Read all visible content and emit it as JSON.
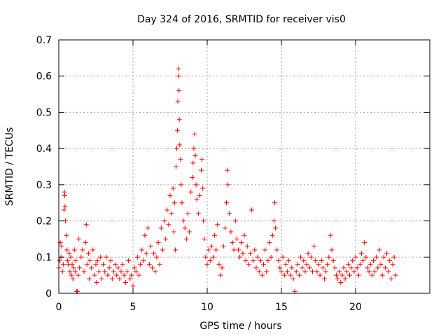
{
  "chart_data": {
    "type": "scatter",
    "title": "Day 324 of 2016, SRMTID for receiver vis0",
    "xlabel": "GPS time / hours",
    "ylabel": "SRMTID / TECUs",
    "xlim": [
      0,
      25
    ],
    "ylim": [
      0,
      0.7
    ],
    "xticks": [
      0,
      5,
      10,
      15,
      20
    ],
    "xtick_labels": [
      "0",
      "5",
      "10",
      "15",
      "20"
    ],
    "yticks": [
      0,
      0.1,
      0.2,
      0.3,
      0.4,
      0.5,
      0.6,
      0.7
    ],
    "ytick_labels": [
      "0",
      "0.1",
      "0.2",
      "0.3",
      "0.4",
      "0.5",
      "0.6",
      "0.7"
    ],
    "grid": true,
    "marker": "+",
    "color": "#ff0000",
    "series": [
      {
        "name": "SRMTID",
        "points": [
          [
            0.0,
            0.07
          ],
          [
            0.05,
            0.09
          ],
          [
            0.1,
            0.14
          ],
          [
            0.15,
            0.1
          ],
          [
            0.2,
            0.13
          ],
          [
            0.25,
            0.06
          ],
          [
            0.3,
            0.08
          ],
          [
            0.35,
            0.23
          ],
          [
            0.38,
            0.28
          ],
          [
            0.4,
            0.27
          ],
          [
            0.42,
            0.24
          ],
          [
            0.45,
            0.2
          ],
          [
            0.5,
            0.16
          ],
          [
            0.55,
            0.12
          ],
          [
            0.6,
            0.09
          ],
          [
            0.65,
            0.08
          ],
          [
            0.7,
            0.11
          ],
          [
            0.75,
            0.06
          ],
          [
            0.8,
            0.1
          ],
          [
            0.85,
            0.05
          ],
          [
            0.9,
            0.08
          ],
          [
            0.95,
            0.04
          ],
          [
            1.0,
            0.07
          ],
          [
            1.05,
            0.12
          ],
          [
            1.1,
            0.06
          ],
          [
            1.15,
            0.09
          ],
          [
            1.2,
            0.005
          ],
          [
            1.25,
            0.005
          ],
          [
            1.3,
            0.05
          ],
          [
            1.35,
            0.15
          ],
          [
            1.4,
            0.07
          ],
          [
            1.5,
            0.1
          ],
          [
            1.6,
            0.12
          ],
          [
            1.7,
            0.06
          ],
          [
            1.8,
            0.14
          ],
          [
            1.85,
            0.19
          ],
          [
            1.9,
            0.08
          ],
          [
            2.0,
            0.11
          ],
          [
            2.05,
            0.04
          ],
          [
            2.1,
            0.09
          ],
          [
            2.2,
            0.07
          ],
          [
            2.3,
            0.12
          ],
          [
            2.4,
            0.05
          ],
          [
            2.5,
            0.08
          ],
          [
            2.55,
            0.03
          ],
          [
            2.6,
            0.09
          ],
          [
            2.7,
            0.06
          ],
          [
            2.8,
            0.1
          ],
          [
            2.9,
            0.04
          ],
          [
            3.0,
            0.08
          ],
          [
            3.1,
            0.06
          ],
          [
            3.2,
            0.1
          ],
          [
            3.3,
            0.05
          ],
          [
            3.4,
            0.07
          ],
          [
            3.5,
            0.09
          ],
          [
            3.6,
            0.04
          ],
          [
            3.7,
            0.06
          ],
          [
            3.8,
            0.08
          ],
          [
            3.9,
            0.05
          ],
          [
            4.0,
            0.07
          ],
          [
            4.1,
            0.04
          ],
          [
            4.2,
            0.06
          ],
          [
            4.3,
            0.08
          ],
          [
            4.4,
            0.05
          ],
          [
            4.5,
            0.03
          ],
          [
            4.6,
            0.06
          ],
          [
            4.7,
            0.09
          ],
          [
            4.8,
            0.04
          ],
          [
            4.9,
            0.05
          ],
          [
            5.0,
            0.02
          ],
          [
            5.1,
            0.07
          ],
          [
            5.2,
            0.06
          ],
          [
            5.3,
            0.1
          ],
          [
            5.4,
            0.05
          ],
          [
            5.5,
            0.08
          ],
          [
            5.6,
            0.12
          ],
          [
            5.7,
            0.09
          ],
          [
            5.8,
            0.16
          ],
          [
            5.9,
            0.11
          ],
          [
            6.0,
            0.18
          ],
          [
            6.1,
            0.08
          ],
          [
            6.2,
            0.13
          ],
          [
            6.3,
            0.07
          ],
          [
            6.4,
            0.11
          ],
          [
            6.5,
            0.06
          ],
          [
            6.6,
            0.1
          ],
          [
            6.7,
            0.14
          ],
          [
            6.8,
            0.08
          ],
          [
            6.9,
            0.18
          ],
          [
            7.0,
            0.12
          ],
          [
            7.1,
            0.2
          ],
          [
            7.2,
            0.15
          ],
          [
            7.3,
            0.23
          ],
          [
            7.4,
            0.19
          ],
          [
            7.5,
            0.27
          ],
          [
            7.6,
            0.22
          ],
          [
            7.7,
            0.29
          ],
          [
            7.75,
            0.17
          ],
          [
            7.8,
            0.25
          ],
          [
            7.85,
            0.12
          ],
          [
            7.9,
            0.35
          ],
          [
            7.95,
            0.4
          ],
          [
            8.0,
            0.45
          ],
          [
            8.02,
            0.53
          ],
          [
            8.05,
            0.62
          ],
          [
            8.08,
            0.6
          ],
          [
            8.1,
            0.56
          ],
          [
            8.12,
            0.48
          ],
          [
            8.15,
            0.41
          ],
          [
            8.2,
            0.37
          ],
          [
            8.25,
            0.3
          ],
          [
            8.3,
            0.25
          ],
          [
            8.4,
            0.2
          ],
          [
            8.5,
            0.18
          ],
          [
            8.6,
            0.15
          ],
          [
            8.7,
            0.22
          ],
          [
            8.8,
            0.17
          ],
          [
            8.9,
            0.28
          ],
          [
            9.0,
            0.32
          ],
          [
            9.05,
            0.36
          ],
          [
            9.1,
            0.4
          ],
          [
            9.15,
            0.44
          ],
          [
            9.2,
            0.38
          ],
          [
            9.25,
            0.3
          ],
          [
            9.3,
            0.26
          ],
          [
            9.4,
            0.22
          ],
          [
            9.5,
            0.27
          ],
          [
            9.6,
            0.34
          ],
          [
            9.65,
            0.37
          ],
          [
            9.7,
            0.29
          ],
          [
            9.75,
            0.2
          ],
          [
            9.8,
            0.15
          ],
          [
            9.9,
            0.1
          ],
          [
            10.0,
            0.08
          ],
          [
            10.1,
            0.12
          ],
          [
            10.2,
            0.09
          ],
          [
            10.3,
            0.13
          ],
          [
            10.4,
            0.1
          ],
          [
            10.5,
            0.16
          ],
          [
            10.6,
            0.12
          ],
          [
            10.7,
            0.19
          ],
          [
            10.8,
            0.08
          ],
          [
            10.9,
            0.05
          ],
          [
            11.0,
            0.07
          ],
          [
            11.1,
            0.13
          ],
          [
            11.2,
            0.18
          ],
          [
            11.3,
            0.25
          ],
          [
            11.35,
            0.34
          ],
          [
            11.4,
            0.3
          ],
          [
            11.5,
            0.22
          ],
          [
            11.6,
            0.17
          ],
          [
            11.7,
            0.14
          ],
          [
            11.8,
            0.12
          ],
          [
            11.9,
            0.2
          ],
          [
            12.0,
            0.15
          ],
          [
            12.1,
            0.12
          ],
          [
            12.2,
            0.1
          ],
          [
            12.3,
            0.14
          ],
          [
            12.4,
            0.11
          ],
          [
            12.5,
            0.16
          ],
          [
            12.6,
            0.09
          ],
          [
            12.7,
            0.13
          ],
          [
            12.8,
            0.08
          ],
          [
            12.9,
            0.11
          ],
          [
            13.0,
            0.23
          ],
          [
            13.1,
            0.09
          ],
          [
            13.2,
            0.12
          ],
          [
            13.3,
            0.07
          ],
          [
            13.4,
            0.1
          ],
          [
            13.5,
            0.06
          ],
          [
            13.6,
            0.09
          ],
          [
            13.7,
            0.05
          ],
          [
            13.8,
            0.08
          ],
          [
            13.9,
            0.12
          ],
          [
            14.0,
            0.06
          ],
          [
            14.1,
            0.09
          ],
          [
            14.2,
            0.14
          ],
          [
            14.3,
            0.1
          ],
          [
            14.4,
            0.16
          ],
          [
            14.5,
            0.2
          ],
          [
            14.55,
            0.25
          ],
          [
            14.6,
            0.18
          ],
          [
            14.7,
            0.12
          ],
          [
            14.8,
            0.09
          ],
          [
            14.9,
            0.07
          ],
          [
            15.0,
            0.06
          ],
          [
            15.1,
            0.1
          ],
          [
            15.2,
            0.05
          ],
          [
            15.3,
            0.08
          ],
          [
            15.4,
            0.06
          ],
          [
            15.5,
            0.09
          ],
          [
            15.6,
            0.05
          ],
          [
            15.7,
            0.07
          ],
          [
            15.8,
            0.04
          ],
          [
            15.9,
            0.005
          ],
          [
            16.0,
            0.06
          ],
          [
            16.1,
            0.08
          ],
          [
            16.2,
            0.05
          ],
          [
            16.3,
            0.1
          ],
          [
            16.4,
            0.07
          ],
          [
            16.5,
            0.09
          ],
          [
            16.6,
            0.06
          ],
          [
            16.7,
            0.08
          ],
          [
            16.8,
            0.11
          ],
          [
            16.9,
            0.07
          ],
          [
            17.0,
            0.1
          ],
          [
            17.1,
            0.06
          ],
          [
            17.2,
            0.13
          ],
          [
            17.3,
            0.09
          ],
          [
            17.4,
            0.06
          ],
          [
            17.5,
            0.08
          ],
          [
            17.6,
            0.05
          ],
          [
            17.7,
            0.09
          ],
          [
            17.8,
            0.07
          ],
          [
            17.9,
            0.04
          ],
          [
            18.0,
            0.06
          ],
          [
            18.1,
            0.08
          ],
          [
            18.2,
            0.1
          ],
          [
            18.3,
            0.16
          ],
          [
            18.4,
            0.12
          ],
          [
            18.5,
            0.09
          ],
          [
            18.6,
            0.07
          ],
          [
            18.7,
            0.05
          ],
          [
            18.8,
            0.04
          ],
          [
            18.9,
            0.06
          ],
          [
            19.0,
            0.03
          ],
          [
            19.1,
            0.05
          ],
          [
            19.2,
            0.07
          ],
          [
            19.3,
            0.04
          ],
          [
            19.4,
            0.06
          ],
          [
            19.5,
            0.08
          ],
          [
            19.6,
            0.05
          ],
          [
            19.7,
            0.07
          ],
          [
            19.8,
            0.09
          ],
          [
            19.9,
            0.06
          ],
          [
            20.0,
            0.1
          ],
          [
            20.1,
            0.07
          ],
          [
            20.2,
            0.05
          ],
          [
            20.3,
            0.08
          ],
          [
            20.4,
            0.11
          ],
          [
            20.5,
            0.09
          ],
          [
            20.6,
            0.14
          ],
          [
            20.7,
            0.1
          ],
          [
            20.8,
            0.07
          ],
          [
            20.9,
            0.06
          ],
          [
            21.0,
            0.08
          ],
          [
            21.1,
            0.05
          ],
          [
            21.2,
            0.09
          ],
          [
            21.3,
            0.06
          ],
          [
            21.4,
            0.1
          ],
          [
            21.5,
            0.07
          ],
          [
            21.6,
            0.12
          ],
          [
            21.7,
            0.08
          ],
          [
            21.8,
            0.05
          ],
          [
            21.9,
            0.1
          ],
          [
            22.0,
            0.07
          ],
          [
            22.1,
            0.11
          ],
          [
            22.2,
            0.06
          ],
          [
            22.3,
            0.09
          ],
          [
            22.4,
            0.04
          ],
          [
            22.5,
            0.08
          ],
          [
            22.6,
            0.1
          ],
          [
            22.7,
            0.05
          ]
        ]
      }
    ]
  }
}
